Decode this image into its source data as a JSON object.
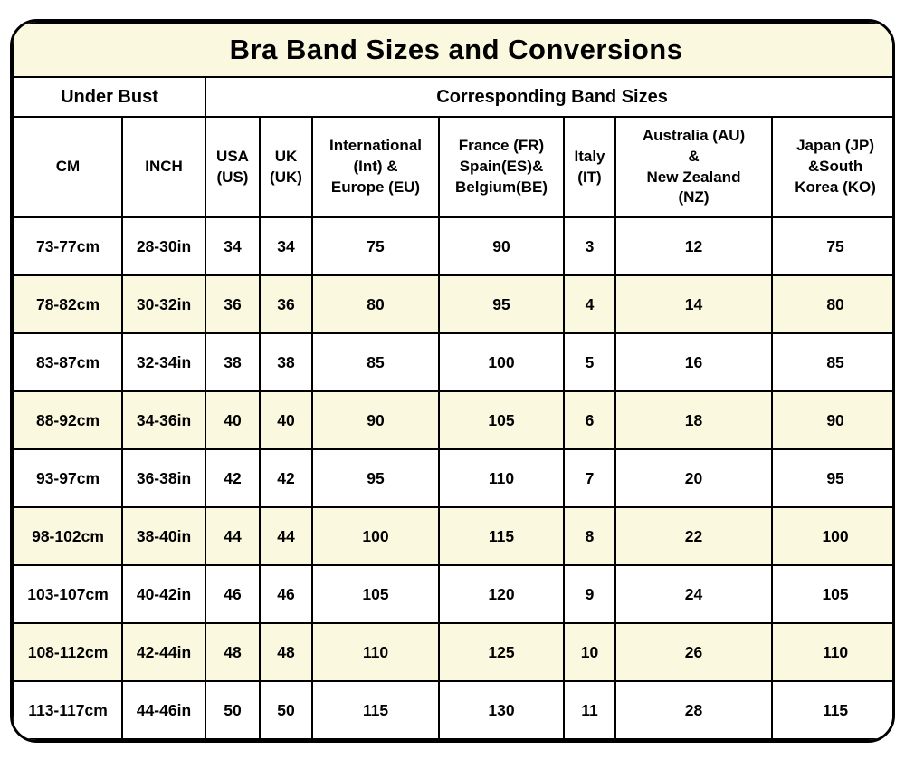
{
  "title": "Bra Band Sizes and Conversions",
  "table": {
    "group_headers": [
      {
        "label": "Under Bust",
        "colspan": 2
      },
      {
        "label": "Corresponding Band Sizes",
        "colspan": 7
      }
    ],
    "columns": [
      {
        "label": "CM"
      },
      {
        "label": "INCH"
      },
      {
        "label": "USA\n(US)"
      },
      {
        "label": "UK\n(UK)"
      },
      {
        "label": "International\n(Int) &\nEurope (EU)"
      },
      {
        "label": "France (FR)\nSpain(ES)&\nBelgium(BE)"
      },
      {
        "label": "Italy\n(IT)"
      },
      {
        "label": "Australia (AU)\n&\nNew Zealand\n(NZ)"
      },
      {
        "label": "Japan (JP)\n&South\nKorea (KO)"
      }
    ],
    "rows": [
      [
        "73-77cm",
        "28-30in",
        "34",
        "34",
        "75",
        "90",
        "3",
        "12",
        "75"
      ],
      [
        "78-82cm",
        "30-32in",
        "36",
        "36",
        "80",
        "95",
        "4",
        "14",
        "80"
      ],
      [
        "83-87cm",
        "32-34in",
        "38",
        "38",
        "85",
        "100",
        "5",
        "16",
        "85"
      ],
      [
        "88-92cm",
        "34-36in",
        "40",
        "40",
        "90",
        "105",
        "6",
        "18",
        "90"
      ],
      [
        "93-97cm",
        "36-38in",
        "42",
        "42",
        "95",
        "110",
        "7",
        "20",
        "95"
      ],
      [
        "98-102cm",
        "38-40in",
        "44",
        "44",
        "100",
        "115",
        "8",
        "22",
        "100"
      ],
      [
        "103-107cm",
        "40-42in",
        "46",
        "46",
        "105",
        "120",
        "9",
        "24",
        "105"
      ],
      [
        "108-112cm",
        "42-44in",
        "48",
        "48",
        "110",
        "125",
        "10",
        "26",
        "110"
      ],
      [
        "113-117cm",
        "44-46in",
        "50",
        "50",
        "115",
        "130",
        "11",
        "28",
        "115"
      ]
    ]
  },
  "colors": {
    "stripe": "#FBF8E0",
    "cell_white": "#FFFFFF",
    "border": "#000000"
  },
  "chart_data": {
    "type": "table",
    "title": "Bra Band Sizes and Conversions",
    "group_headers": [
      "Under Bust",
      "Corresponding Band Sizes"
    ],
    "columns": [
      "CM",
      "INCH",
      "USA (US)",
      "UK (UK)",
      "International (Int) & Europe (EU)",
      "France (FR) Spain(ES)& Belgium(BE)",
      "Italy (IT)",
      "Australia (AU) & New Zealand (NZ)",
      "Japan (JP) &South Korea (KO)"
    ],
    "rows": [
      [
        "73-77cm",
        "28-30in",
        34,
        34,
        75,
        90,
        3,
        12,
        75
      ],
      [
        "78-82cm",
        "30-32in",
        36,
        36,
        80,
        95,
        4,
        14,
        80
      ],
      [
        "83-87cm",
        "32-34in",
        38,
        38,
        85,
        100,
        5,
        16,
        85
      ],
      [
        "88-92cm",
        "34-36in",
        40,
        40,
        90,
        105,
        6,
        18,
        90
      ],
      [
        "93-97cm",
        "36-38in",
        42,
        42,
        95,
        110,
        7,
        20,
        95
      ],
      [
        "98-102cm",
        "38-40in",
        44,
        44,
        100,
        115,
        8,
        22,
        100
      ],
      [
        "103-107cm",
        "40-42in",
        46,
        46,
        105,
        120,
        9,
        24,
        105
      ],
      [
        "108-112cm",
        "42-44in",
        48,
        48,
        110,
        125,
        10,
        26,
        110
      ],
      [
        "113-117cm",
        "44-46in",
        50,
        50,
        115,
        130,
        11,
        28,
        115
      ]
    ],
    "layout_hints": {
      "row_striping": "alternate white / pale-yellow starting white",
      "all_text_bold_black": true,
      "outer_border": "3px black rounded corners",
      "grid": true
    }
  }
}
